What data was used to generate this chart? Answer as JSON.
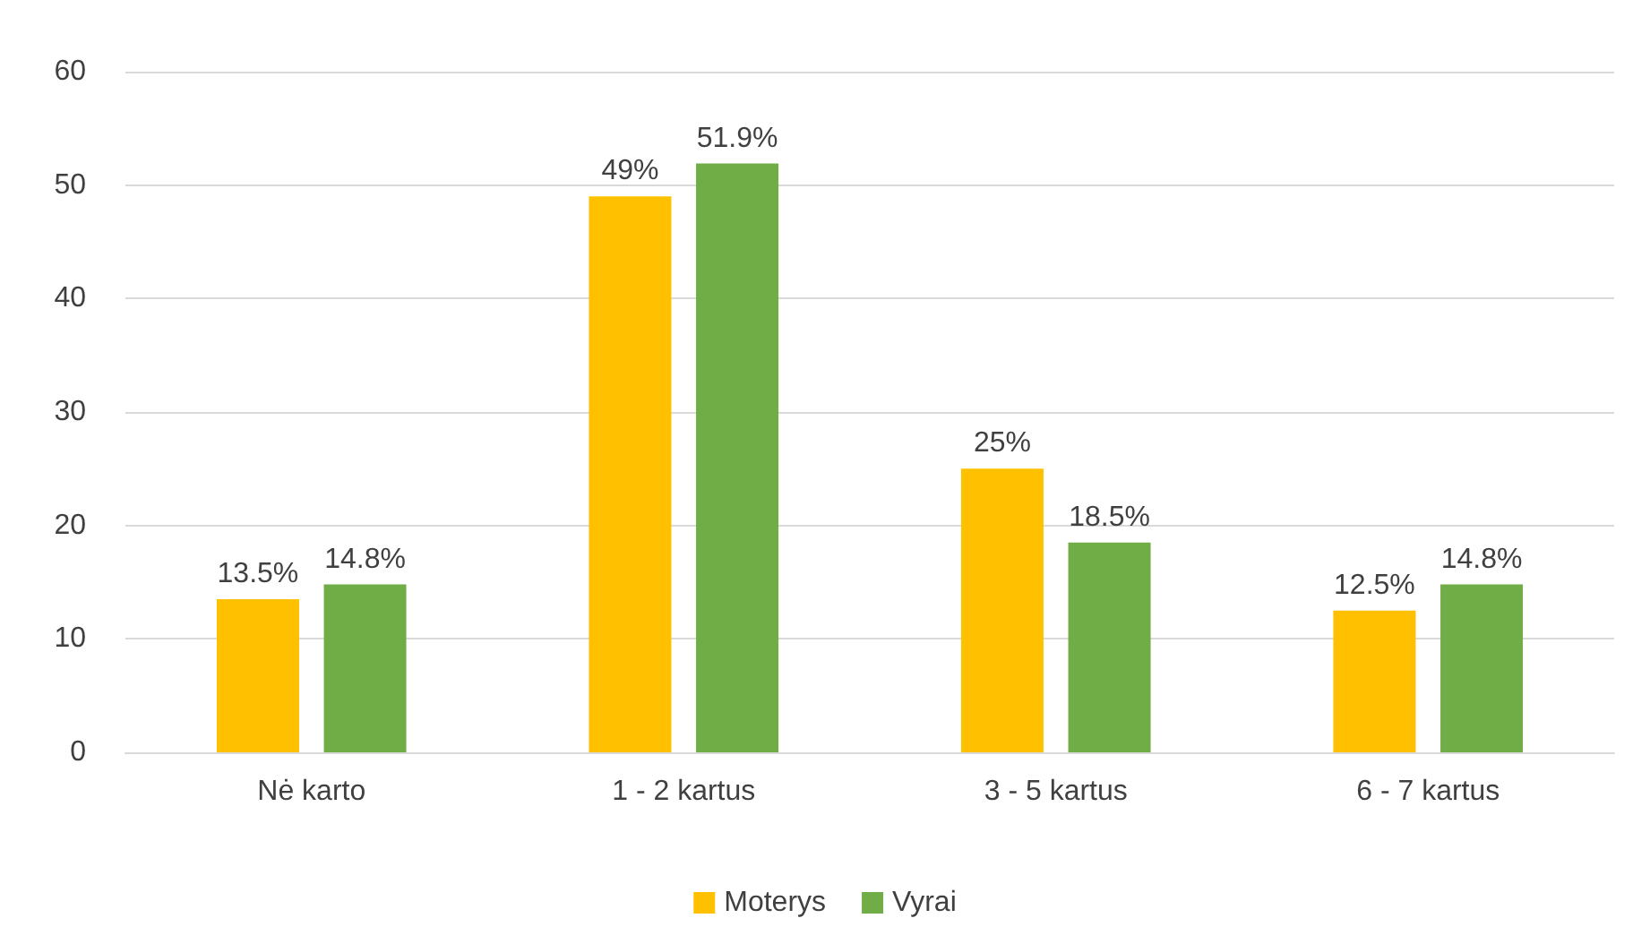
{
  "chart_data": {
    "type": "bar",
    "categories": [
      "Nė karto",
      "1 - 2 kartus",
      "3 - 5 kartus",
      "6 - 7 kartus"
    ],
    "series": [
      {
        "name": "Moterys",
        "color": "#ffc000",
        "values": [
          13.5,
          49,
          25,
          12.5
        ],
        "value_labels": [
          "13.5%",
          "49%",
          "25%",
          "12.5%"
        ]
      },
      {
        "name": "Vyrai",
        "color": "#70ad47",
        "values": [
          14.8,
          51.9,
          18.5,
          14.8
        ],
        "value_labels": [
          "14.8%",
          "51.9%",
          "18.5%",
          "14.8%"
        ]
      }
    ],
    "ylim": [
      0,
      60
    ],
    "yticks": [
      0,
      10,
      20,
      30,
      40,
      50,
      60
    ],
    "grid": "y",
    "legend": "bottom"
  }
}
